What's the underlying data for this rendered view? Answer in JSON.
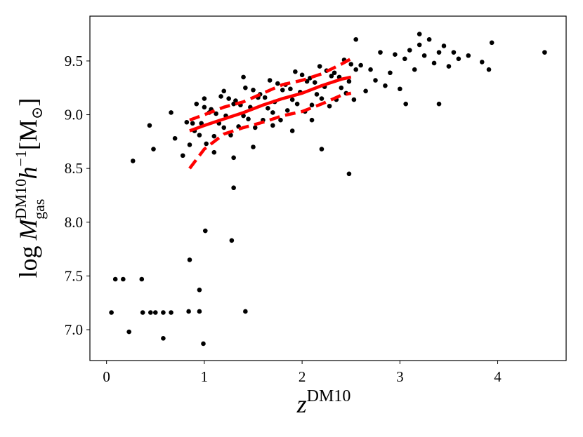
{
  "chart_data": {
    "type": "scatter",
    "xlabel": {
      "base": "z",
      "sup": "DM10"
    },
    "ylabel": {
      "log": "log",
      "var": "M",
      "sup": "DM10",
      "sub": "gas",
      "h": "h",
      "exp": "−1",
      "unit": "[M",
      "sun": "⊙",
      "close": "]"
    },
    "xlim": [
      -0.17,
      4.7
    ],
    "ylim": [
      6.713,
      9.917
    ],
    "xticks": [
      0,
      1,
      2,
      3,
      4
    ],
    "yticks": [
      {
        "value": 7,
        "label": "7.0"
      },
      7.5,
      {
        "value": 8,
        "label": "8.0"
      },
      8.5,
      {
        "value": 9,
        "label": "9.0"
      },
      9.5
    ],
    "series": [
      {
        "type": "scatter",
        "color": "#000000",
        "x": [
          0.82,
          0.85,
          0.88,
          0.9,
          0.92,
          0.95,
          0.97,
          1.0,
          1.02,
          1.05,
          1.07,
          1.1,
          1.12,
          1.15,
          1.17,
          1.2,
          1.22,
          1.25,
          1.27,
          1.3,
          1.32,
          1.35,
          1.37,
          1.4,
          1.42,
          1.45,
          1.47,
          1.5,
          1.52,
          1.55,
          1.57,
          1.6,
          1.62,
          1.65,
          1.67,
          1.7,
          1.72,
          1.75,
          1.78,
          1.8,
          1.83,
          1.85,
          1.88,
          1.9,
          1.93,
          1.95,
          1.98,
          2.0,
          2.03,
          2.05,
          2.08,
          2.1,
          2.13,
          2.15,
          2.18,
          2.2,
          2.23,
          2.25,
          2.28,
          2.3,
          2.33,
          2.35,
          2.38,
          2.4,
          2.43,
          2.45,
          2.48,
          2.5,
          2.53,
          2.55,
          2.6,
          2.65,
          2.7,
          2.75,
          2.8,
          2.85,
          2.9,
          2.95,
          3.0,
          3.05,
          3.1,
          3.15,
          3.2,
          3.25,
          3.3,
          3.35,
          3.4,
          3.45,
          3.5,
          3.55,
          3.6,
          3.7,
          0.7,
          0.78,
          1.1,
          1.3,
          1.5,
          1.7,
          1.9,
          2.1,
          1.0,
          1.2,
          1.4,
          2.55,
          3.2,
          2.2,
          0.05,
          0.23,
          0.27,
          0.09,
          0.17,
          0.36,
          0.37,
          0.45,
          0.5,
          0.58,
          0.66,
          0.58,
          0.85,
          0.84,
          0.95,
          0.95,
          1.01,
          0.99,
          1.28,
          1.42,
          2.48,
          0.44,
          0.48,
          4.48,
          3.94,
          3.91,
          3.84,
          3.06,
          3.4,
          0.66,
          1.3
        ],
        "values": [
          8.93,
          8.72,
          8.92,
          8.85,
          9.1,
          8.81,
          8.92,
          9.07,
          8.73,
          9.02,
          9.05,
          8.8,
          9.01,
          8.92,
          9.17,
          8.88,
          8.99,
          9.15,
          8.81,
          9.1,
          9.13,
          8.89,
          9.09,
          8.99,
          9.25,
          8.96,
          9.07,
          9.23,
          8.88,
          9.16,
          9.19,
          8.95,
          9.16,
          9.06,
          9.32,
          9.02,
          9.12,
          9.29,
          8.95,
          9.23,
          9.28,
          9.04,
          9.24,
          9.14,
          9.4,
          9.1,
          9.21,
          9.37,
          9.03,
          9.31,
          9.34,
          9.09,
          9.3,
          9.19,
          9.45,
          9.15,
          9.26,
          9.41,
          9.08,
          9.36,
          9.39,
          9.14,
          9.35,
          9.25,
          9.51,
          9.2,
          9.31,
          9.47,
          9.14,
          9.42,
          9.46,
          9.22,
          9.42,
          9.32,
          9.58,
          9.27,
          9.39,
          9.56,
          9.24,
          9.52,
          9.6,
          9.42,
          9.65,
          9.55,
          9.7,
          9.48,
          9.58,
          9.64,
          9.45,
          9.58,
          9.52,
          9.55,
          8.78,
          8.62,
          8.65,
          8.6,
          8.7,
          8.9,
          8.85,
          8.95,
          9.15,
          9.22,
          9.35,
          9.7,
          9.75,
          8.68,
          7.16,
          6.98,
          8.57,
          7.47,
          7.47,
          7.47,
          7.16,
          7.16,
          7.16,
          7.16,
          7.16,
          6.92,
          7.65,
          7.17,
          7.17,
          7.37,
          7.92,
          6.87,
          7.83,
          7.17,
          8.45,
          8.9,
          8.68,
          9.58,
          9.67,
          9.42,
          9.49,
          9.1,
          9.1,
          9.02,
          8.32
        ]
      },
      {
        "type": "line",
        "color": "#ff0000",
        "style": "solid",
        "x": [
          0.85,
          1.0,
          1.2,
          1.4,
          1.6,
          1.8,
          2.0,
          2.2,
          2.4,
          2.5
        ],
        "values": [
          8.85,
          8.9,
          8.96,
          9.02,
          9.09,
          9.15,
          9.2,
          9.27,
          9.33,
          9.35
        ]
      },
      {
        "type": "line",
        "color": "#ff0000",
        "style": "dashed",
        "x": [
          0.85,
          1.0,
          1.2,
          1.4,
          1.6,
          1.8,
          2.0,
          2.2,
          2.4,
          2.5
        ],
        "values": [
          8.95,
          9.0,
          9.07,
          9.12,
          9.2,
          9.28,
          9.32,
          9.38,
          9.47,
          9.52
        ]
      },
      {
        "type": "line",
        "color": "#ff0000",
        "style": "dashed",
        "x": [
          0.85,
          1.0,
          1.2,
          1.4,
          1.6,
          1.8,
          2.0,
          2.2,
          2.4,
          2.5
        ],
        "values": [
          8.5,
          8.68,
          8.82,
          8.88,
          8.93,
          8.99,
          9.03,
          9.1,
          9.18,
          9.2
        ]
      }
    ]
  }
}
